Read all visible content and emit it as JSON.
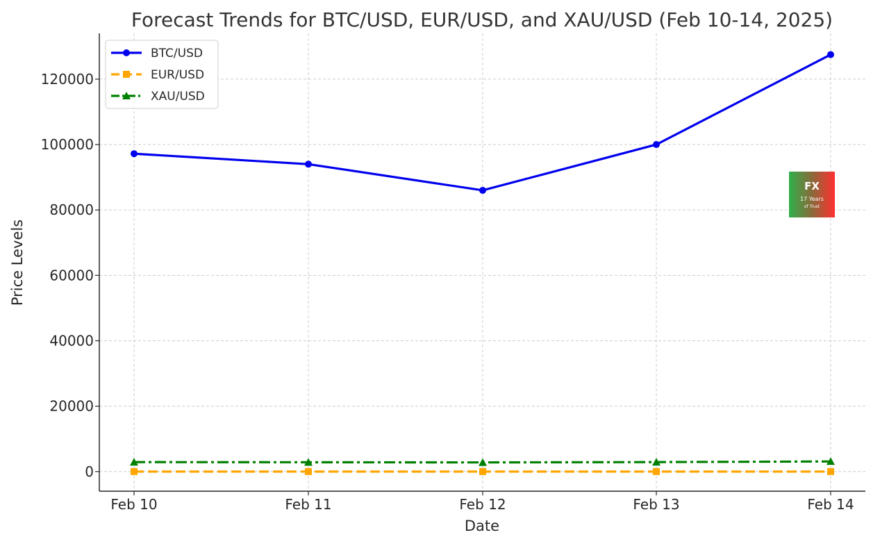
{
  "chart_data": {
    "type": "line",
    "title": "Forecast Trends for BTC/USD, EUR/USD, and XAU/USD (Feb 10-14, 2025)",
    "xlabel": "Date",
    "ylabel": "Price Levels",
    "categories": [
      "Feb 10",
      "Feb 11",
      "Feb 12",
      "Feb 13",
      "Feb 14"
    ],
    "ylim": [
      -6000,
      134000
    ],
    "yticks": [
      0,
      20000,
      40000,
      60000,
      80000,
      100000,
      120000
    ],
    "grid": true,
    "legend_position": "top-left",
    "series": [
      {
        "name": "BTC/USD",
        "values": [
          97200,
          94000,
          86000,
          100000,
          127500
        ],
        "color": "#0000ee",
        "line_style": "solid",
        "marker": "circle"
      },
      {
        "name": "EUR/USD",
        "values": [
          1.05,
          1.04,
          1.03,
          1.05,
          1.06
        ],
        "color": "#ffa500",
        "line_style": "dashed",
        "marker": "square"
      },
      {
        "name": "XAU/USD",
        "values": [
          2900,
          2850,
          2800,
          2900,
          3100
        ],
        "color": "#008000",
        "line_style": "dashdot",
        "marker": "triangle"
      }
    ]
  },
  "watermark": {
    "logo_name": "fx-logo-icon",
    "text": "FX 17 Years of Trust"
  }
}
